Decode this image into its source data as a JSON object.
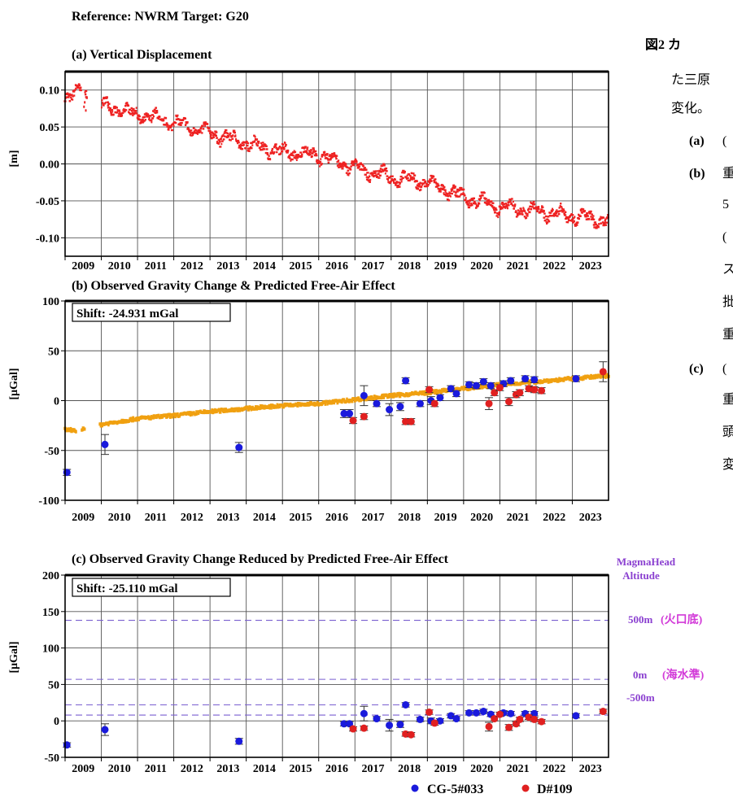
{
  "figure": {
    "reference_title": "Reference: NWRM Target: G20"
  },
  "years": [
    "2009",
    "2010",
    "2011",
    "2012",
    "2013",
    "2014",
    "2015",
    "2016",
    "2017",
    "2018",
    "2019",
    "2020",
    "2021",
    "2022",
    "2023"
  ],
  "panels": {
    "a": {
      "title": "(a) Vertical Displacement",
      "ylabel": "[m]",
      "ticks": [
        "0.10",
        "0.05",
        "0.00",
        "-0.05",
        "-0.10"
      ],
      "ylim": [
        -0.125,
        0.125
      ]
    },
    "b": {
      "title": "(b) Observed Gravity Change & Predicted Free-Air Effect",
      "ylabel": "[μGal]",
      "ticks": [
        "100",
        "50",
        "0",
        "-50",
        "-100"
      ],
      "ylim": [
        -100,
        100
      ],
      "shift": "Shift: -24.931 mGal"
    },
    "c": {
      "title": "(c) Observed Gravity Change Reduced by Predicted Free-Air Effect",
      "ylabel": "[μGal]",
      "ticks": [
        "200",
        "150",
        "100",
        "50",
        "0",
        "-50"
      ],
      "ylim": [
        -50,
        200
      ],
      "shift": "Shift: -25.110 mGal"
    }
  },
  "magma": {
    "header1": "MagmaHead",
    "header2": "Altitude",
    "label_500": "500m",
    "label_500_jp": "(火口底)",
    "label_0": "0m",
    "label_0_jp": "(海水準)",
    "label_m500": "-500m"
  },
  "legend": {
    "cg5": "CG-5#033",
    "d109": "D#109"
  },
  "caption": {
    "line1": "図2 カ",
    "line2": "た三原",
    "line3": "変化。",
    "a": "(a)",
    "a_text": "(",
    "b": "(b)",
    "b_text1": "重",
    "b_text2": "5",
    "b_text3": "(",
    "b_text4": "ス",
    "b_text5": "批",
    "b_text6": "重",
    "c": "(c)",
    "c_text1": "(",
    "c_text2": "重",
    "c_text3": "頭",
    "c_text4": "変"
  },
  "colors": {
    "cg5": "#1a1adc",
    "d109": "#e02020",
    "freeair": "#f0a010",
    "displacement": "#ee2222",
    "magma_line": "#7a5fd0"
  },
  "chart_data": [
    {
      "type": "scatter",
      "title": "(a) Vertical Displacement",
      "ylabel": "[m]",
      "xlim": [
        2009.0,
        2024.0
      ],
      "ylim": [
        -0.125,
        0.125
      ],
      "grid": true,
      "series": [
        {
          "kind": "displacement-trend",
          "x": [
            2009.0,
            2009.4,
            2010.0,
            2011.0,
            2012.0,
            2013.0,
            2014.0,
            2015.0,
            2016.0,
            2017.0,
            2018.0,
            2019.0,
            2020.0,
            2021.0,
            2022.0,
            2023.0,
            2024.0
          ],
          "y": [
            0.094,
            0.097,
            0.08,
            0.066,
            0.056,
            0.042,
            0.028,
            0.016,
            0.012,
            -0.005,
            -0.018,
            -0.025,
            -0.045,
            -0.058,
            -0.064,
            -0.07,
            -0.078
          ]
        }
      ]
    },
    {
      "type": "scatter",
      "title": "(b) Observed Gravity Change & Predicted Free-Air Effect",
      "ylabel": "[μGal]",
      "xlim": [
        2009.0,
        2024.0
      ],
      "ylim": [
        -100,
        100
      ],
      "grid": true,
      "annotation": "Shift: -24.931 mGal",
      "series": [
        {
          "kind": "free-air",
          "x": [
            2009.0,
            2009.4,
            2010.0,
            2011.0,
            2012.0,
            2013.0,
            2014.0,
            2015.0,
            2016.0,
            2017.0,
            2018.0,
            2019.0,
            2020.0,
            2021.0,
            2022.0,
            2023.0,
            2024.0
          ],
          "y": [
            -29,
            -30,
            -24,
            -18,
            -15,
            -11,
            -8,
            -5,
            -3,
            1,
            5,
            8,
            12,
            16,
            19,
            22,
            25
          ]
        },
        {
          "name": "CG-5#033",
          "x": [
            2009.05,
            2010.1,
            2013.8,
            2016.7,
            2016.85,
            2017.25,
            2017.6,
            2017.95,
            2018.25,
            2018.4,
            2018.8,
            2019.1,
            2019.35,
            2019.65,
            2019.8,
            2020.15,
            2020.35,
            2020.55,
            2020.75,
            2021.1,
            2021.3,
            2021.7,
            2021.95,
            2023.1
          ],
          "y": [
            -72,
            -44,
            -47,
            -13,
            -13,
            5,
            -3,
            -9,
            -6,
            20,
            -3,
            0,
            3,
            12,
            7,
            16,
            15,
            19,
            15,
            17,
            20,
            22,
            21,
            22
          ],
          "err": [
            3,
            10,
            5,
            4,
            4,
            10,
            3,
            6,
            4,
            3,
            3,
            4,
            3,
            3,
            3,
            3,
            3,
            3,
            3,
            3,
            3,
            3,
            3,
            3
          ]
        },
        {
          "name": "D#109",
          "x": [
            2016.95,
            2017.25,
            2018.4,
            2018.55,
            2019.05,
            2019.2,
            2020.7,
            2020.85,
            2021.0,
            2021.25,
            2021.45,
            2021.55,
            2021.8,
            2021.95,
            2022.15,
            2023.85
          ],
          "y": [
            -20,
            -16,
            -21,
            -21,
            11,
            -3,
            -3,
            8,
            13,
            -1,
            6,
            8,
            12,
            11,
            10,
            29
          ],
          "err": [
            3,
            3,
            3,
            3,
            3,
            3,
            6,
            3,
            3,
            4,
            3,
            3,
            3,
            3,
            3,
            10
          ]
        }
      ]
    },
    {
      "type": "scatter",
      "title": "(c) Observed Gravity Change Reduced by Predicted Free-Air Effect",
      "ylabel": "[μGal]",
      "xlim": [
        2009.0,
        2024.0
      ],
      "ylim": [
        -50,
        200
      ],
      "grid": true,
      "annotation": "Shift: -25.110 mGal",
      "reference_lines": [
        {
          "y": 138,
          "label": "500m (火口底)"
        },
        {
          "y": 57,
          "label": "0m (海水準)"
        },
        {
          "y": 22,
          "label": "-500m"
        },
        {
          "y": 8,
          "label": ""
        }
      ],
      "series": [
        {
          "name": "CG-5#033",
          "x": [
            2009.05,
            2010.1,
            2013.8,
            2016.7,
            2016.85,
            2017.25,
            2017.6,
            2017.95,
            2018.25,
            2018.4,
            2018.8,
            2019.1,
            2019.35,
            2019.65,
            2019.8,
            2020.15,
            2020.35,
            2020.55,
            2020.75,
            2021.1,
            2021.3,
            2021.7,
            2021.95,
            2023.1
          ],
          "y": [
            -33,
            -12,
            -28,
            -4,
            -4,
            10,
            3,
            -6,
            -5,
            22,
            2,
            0,
            0,
            7,
            3,
            11,
            11,
            13,
            9,
            11,
            10,
            10,
            10,
            7
          ],
          "err": [
            3,
            8,
            4,
            3,
            3,
            10,
            3,
            8,
            4,
            3,
            3,
            4,
            3,
            3,
            3,
            3,
            3,
            3,
            3,
            3,
            3,
            3,
            3,
            3
          ]
        },
        {
          "name": "D#109",
          "x": [
            2016.95,
            2017.25,
            2018.4,
            2018.55,
            2019.05,
            2019.2,
            2020.7,
            2020.85,
            2021.0,
            2021.25,
            2021.45,
            2021.55,
            2021.8,
            2021.95,
            2022.15,
            2023.85
          ],
          "y": [
            -11,
            -10,
            -18,
            -19,
            12,
            -3,
            -8,
            3,
            9,
            -9,
            -4,
            2,
            5,
            2,
            -1,
            13
          ],
          "err": [
            3,
            3,
            3,
            3,
            3,
            3,
            6,
            3,
            3,
            4,
            3,
            3,
            3,
            3,
            3,
            3
          ]
        }
      ]
    }
  ]
}
